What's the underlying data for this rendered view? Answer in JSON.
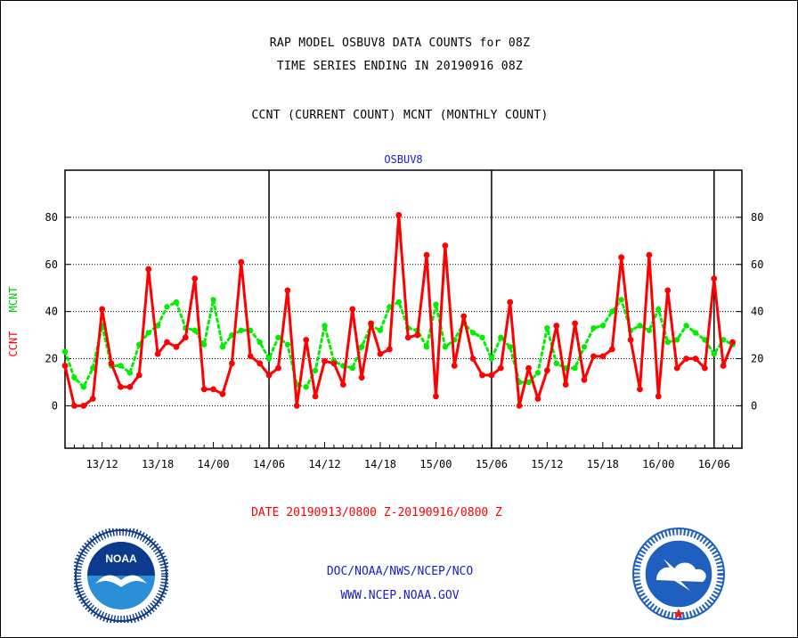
{
  "header": {
    "title_line1": "RAP MODEL OSBUV8 DATA COUNTS for 08Z",
    "title_line2": "TIME SERIES ENDING IN 20190916 08Z",
    "title_line3": "CCNT (CURRENT COUNT) MCNT (MONTHLY COUNT)"
  },
  "chart_data": {
    "type": "line",
    "title": "OSBUV8",
    "ylabel": [
      "CCNT",
      "MCNT"
    ],
    "xlabel": "DATE 20190913/0800 Z-20190916/0800 Z",
    "xlim": [
      0,
      73
    ],
    "ylim": [
      -18,
      100
    ],
    "y_ticks": [
      0,
      20,
      40,
      60,
      80
    ],
    "x_ticks": [
      {
        "x": 4,
        "label": "13/12"
      },
      {
        "x": 10,
        "label": "13/18"
      },
      {
        "x": 16,
        "label": "14/00"
      },
      {
        "x": 22,
        "label": "14/06"
      },
      {
        "x": 28,
        "label": "14/12"
      },
      {
        "x": 34,
        "label": "14/18"
      },
      {
        "x": 40,
        "label": "15/00"
      },
      {
        "x": 46,
        "label": "15/06"
      },
      {
        "x": 52,
        "label": "15/12"
      },
      {
        "x": 58,
        "label": "15/18"
      },
      {
        "x": 64,
        "label": "16/00"
      },
      {
        "x": 70,
        "label": "16/06"
      }
    ],
    "day_boundaries": [
      22,
      46,
      70
    ],
    "grid": true,
    "series": [
      {
        "name": "CCNT",
        "color": "#ff0000",
        "values": [
          17,
          0,
          0,
          3,
          41,
          18,
          8,
          8,
          13,
          58,
          22,
          27,
          25,
          29,
          54,
          7,
          7,
          5,
          18,
          61,
          21,
          18,
          13,
          16,
          49,
          0,
          28,
          4,
          19,
          18,
          9,
          41,
          12,
          35,
          22,
          24,
          81,
          29,
          30,
          64,
          4,
          68,
          17,
          38,
          20,
          13,
          13,
          16,
          44,
          0,
          16,
          3,
          15,
          34,
          9,
          35,
          11,
          21,
          21,
          24,
          63,
          28,
          7,
          64,
          4,
          49,
          16,
          20,
          20,
          16,
          54,
          17,
          27
        ]
      },
      {
        "name": "MCNT",
        "color": "#00ee00",
        "values": [
          23,
          12,
          8,
          16,
          34,
          17,
          17,
          14,
          26,
          31,
          34,
          42,
          44,
          33,
          32,
          26,
          45,
          25,
          30,
          32,
          32,
          27,
          20,
          29,
          26,
          9,
          8,
          15,
          34,
          19,
          17,
          16,
          25,
          34,
          32,
          42,
          44,
          33,
          32,
          25,
          43,
          25,
          28,
          35,
          31,
          29,
          20,
          29,
          25,
          10,
          10,
          14,
          33,
          18,
          16,
          16,
          25,
          33,
          34,
          40,
          45,
          32,
          34,
          32,
          41,
          27,
          28,
          34,
          31,
          28,
          22,
          28,
          26
        ]
      }
    ]
  },
  "footer": {
    "link1": "DOC/NOAA/NWS/NCEP/NCO",
    "link2": "WWW.NCEP.NOAA.GOV",
    "noaa_logo_text": "NOAA"
  },
  "colors": {
    "accent_blue": "#1a1acc",
    "ccnt_red": "#ff0000",
    "mcnt_green": "#00ee00",
    "noaa_blue": "#0d3a8c",
    "nws_blue": "#1f5fbf"
  }
}
